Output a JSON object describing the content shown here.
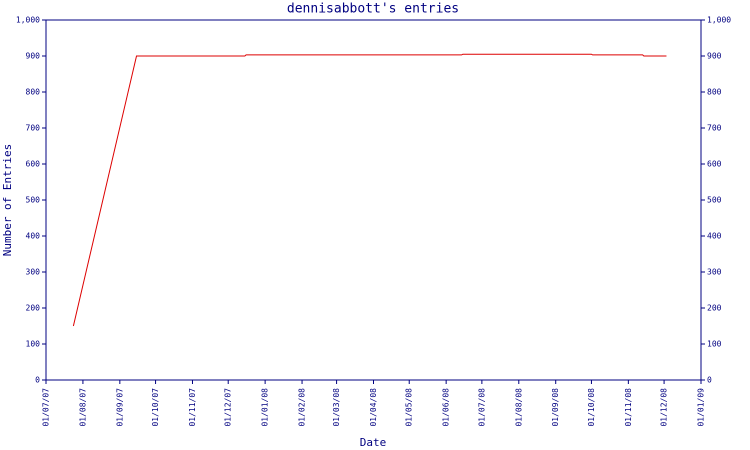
{
  "chart_data": {
    "type": "line",
    "title": "dennisabbott's entries",
    "xlabel": "Date",
    "ylabel": "Number of Entries",
    "x": [
      "24/07/07",
      "15/09/07",
      "15/12/07",
      "16/12/07",
      "14/06/08",
      "15/06/08",
      "01/10/08",
      "02/10/08",
      "13/11/08",
      "14/11/08",
      "03/12/08"
    ],
    "series": [
      {
        "name": "entries",
        "color": "#dd0000",
        "values": [
          150,
          900,
          900,
          903,
          903,
          905,
          905,
          903,
          903,
          900,
          900
        ]
      }
    ],
    "xlim": [
      "01/07/07",
      "01/01/09"
    ],
    "xticks": [
      "01/07/07",
      "01/08/07",
      "01/09/07",
      "01/10/07",
      "01/11/07",
      "01/12/07",
      "01/01/08",
      "01/02/08",
      "01/03/08",
      "01/04/08",
      "01/05/08",
      "01/06/08",
      "01/07/08",
      "01/08/08",
      "01/09/08",
      "01/10/08",
      "01/11/08",
      "01/12/08",
      "01/01/09"
    ],
    "ylim": [
      0,
      1000
    ],
    "yticks": [
      0,
      100,
      200,
      300,
      400,
      500,
      600,
      700,
      800,
      900,
      {
        "value": 1000,
        "label": "1,000"
      }
    ],
    "axis_color": "#000080",
    "grid": false
  }
}
